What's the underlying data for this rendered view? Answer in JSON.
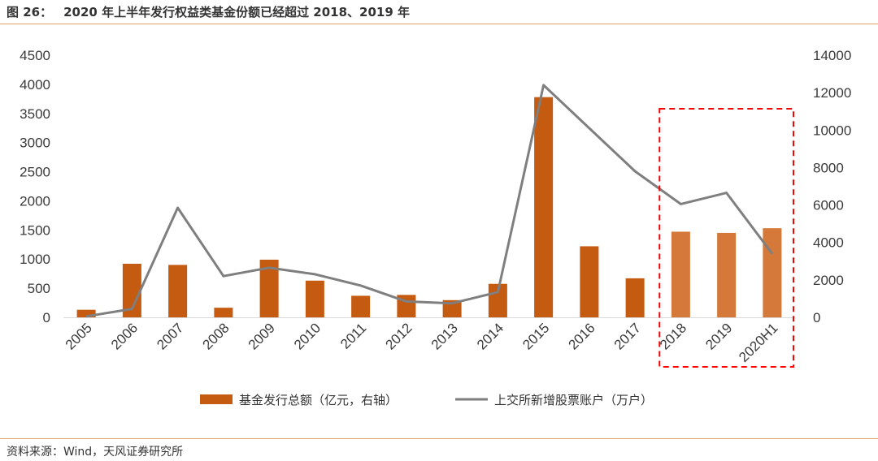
{
  "header": {
    "figure_label": "图 26：",
    "title": "2020 年上半年发行权益类基金份额已经超过 2018、2019 年"
  },
  "footer": {
    "source": "资料来源：Wind，天风证券研究所"
  },
  "chart_data": {
    "type": "bar",
    "categories": [
      "2005",
      "2006",
      "2007",
      "2008",
      "2009",
      "2010",
      "2011",
      "2012",
      "2013",
      "2014",
      "2015",
      "2016",
      "2017",
      "2018",
      "2019",
      "2020H1"
    ],
    "series": [
      {
        "name": "基金发行总额（亿元，右轴）",
        "type": "bar",
        "axis": "left",
        "color": "#c55a11",
        "highlight_color": "#d4793a",
        "values": [
          130,
          920,
          900,
          165,
          990,
          630,
          370,
          385,
          295,
          575,
          3780,
          1220,
          670,
          1470,
          1450,
          1530
        ]
      },
      {
        "name": "上交所新增股票账户（万户）",
        "type": "line",
        "axis": "right",
        "color": "#7f7f7f",
        "values": [
          50,
          450,
          5850,
          2200,
          2650,
          2300,
          1700,
          850,
          750,
          1350,
          12400,
          10100,
          7800,
          6050,
          6650,
          3400
        ]
      }
    ],
    "left_axis": {
      "ticks": [
        "0",
        "500",
        "1000",
        "1500",
        "2000",
        "2500",
        "3000",
        "3500",
        "4000",
        "4500"
      ],
      "ylim": [
        0,
        4500
      ]
    },
    "right_axis": {
      "ticks": [
        "0",
        "2000",
        "4000",
        "6000",
        "8000",
        "10000",
        "12000",
        "14000"
      ],
      "ylim": [
        0,
        14000
      ]
    },
    "highlight": {
      "style": "red dashed box",
      "categories": [
        "2018",
        "2019",
        "2020H1"
      ],
      "color": "#ff0000"
    },
    "legend_position": "bottom",
    "grid": false
  }
}
